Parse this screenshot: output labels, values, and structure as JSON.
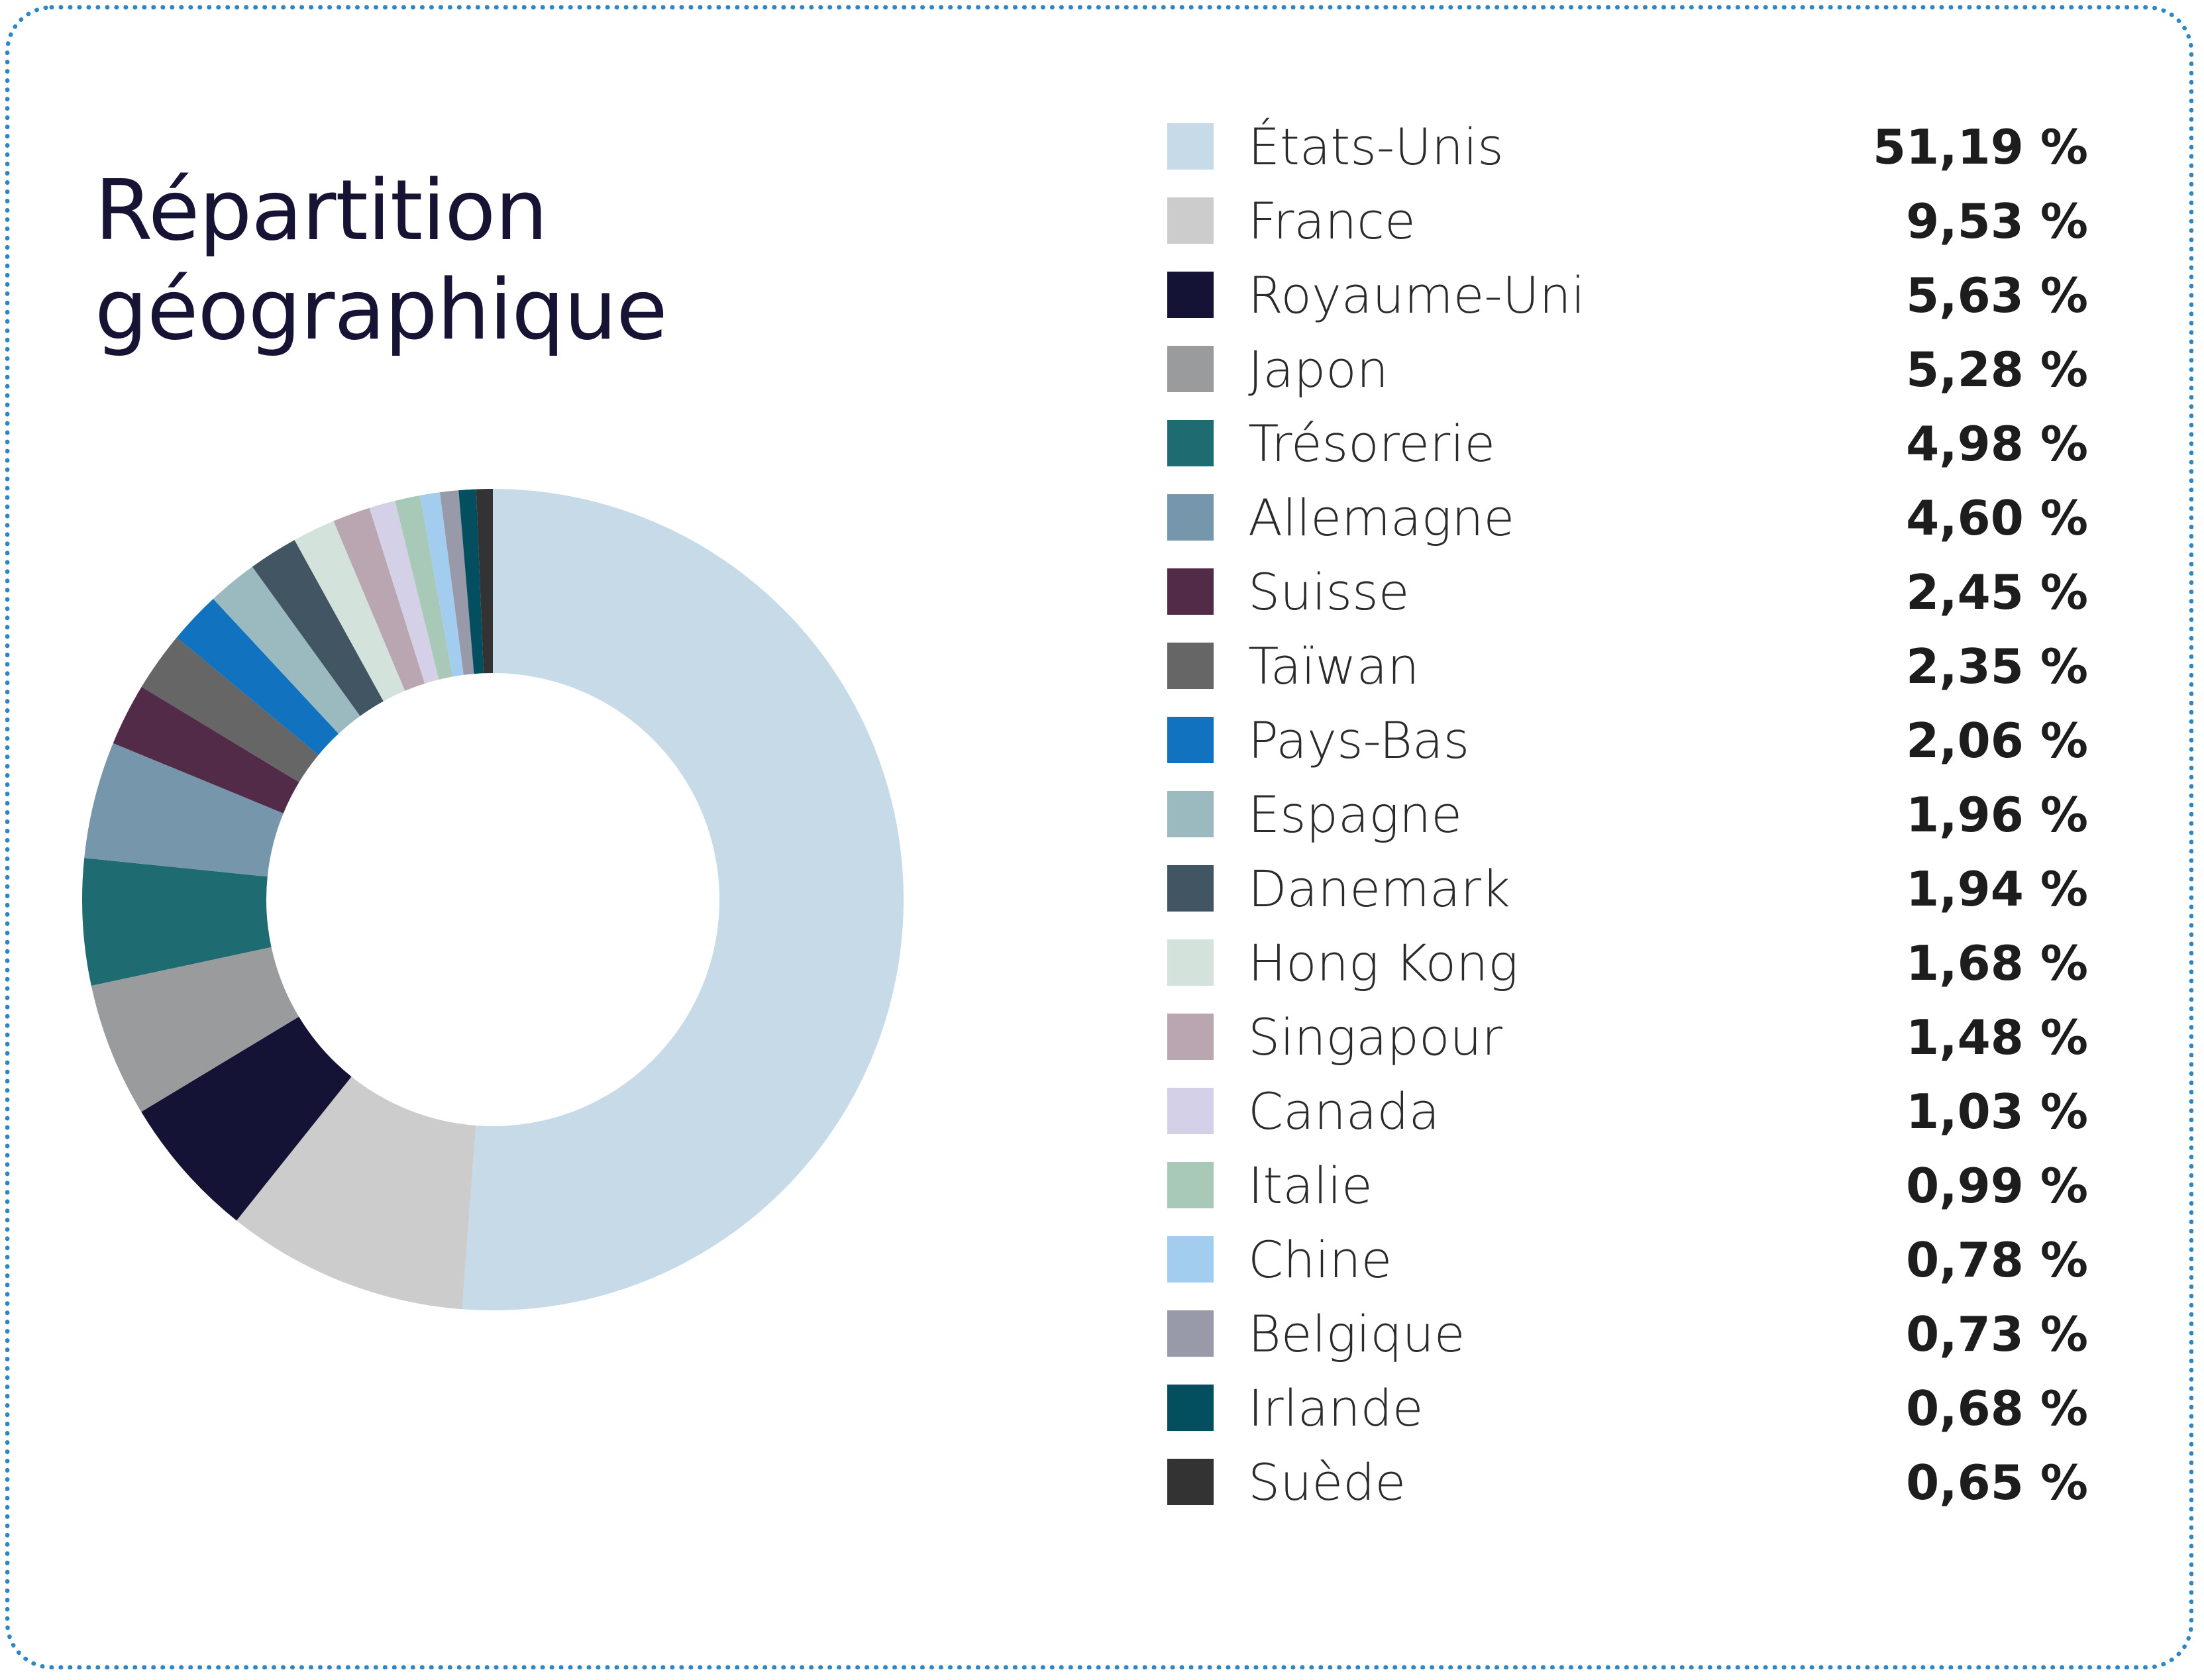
{
  "chart_data": {
    "type": "pie",
    "title": "Répartition géographique",
    "title_lines": [
      "Répartition",
      "géographique"
    ],
    "donut": true,
    "legend_position": "right",
    "slices": [
      {
        "label": "États-Unis",
        "value": 51.19,
        "value_label": "51,19 %",
        "color": "#c7dae7"
      },
      {
        "label": "France",
        "value": 9.53,
        "value_label": "9,53 %",
        "color": "#cccccc"
      },
      {
        "label": "Royaume-Uni",
        "value": 5.63,
        "value_label": "5,63 %",
        "color": "#141235"
      },
      {
        "label": "Japon",
        "value": 5.28,
        "value_label": "5,28 %",
        "color": "#9a9b9d"
      },
      {
        "label": "Trésorerie",
        "value": 4.98,
        "value_label": "4,98 %",
        "color": "#1e6b72"
      },
      {
        "label": "Allemagne",
        "value": 4.6,
        "value_label": "4,60 %",
        "color": "#7596ab"
      },
      {
        "label": "Suisse",
        "value": 2.45,
        "value_label": "2,45 %",
        "color": "#522b48"
      },
      {
        "label": "Taïwan",
        "value": 2.35,
        "value_label": "2,35 %",
        "color": "#666666"
      },
      {
        "label": "Pays-Bas",
        "value": 2.06,
        "value_label": "2,06 %",
        "color": "#1173bf"
      },
      {
        "label": "Espagne",
        "value": 1.96,
        "value_label": "1,96 %",
        "color": "#9bbac0"
      },
      {
        "label": "Danemark",
        "value": 1.94,
        "value_label": "1,94 %",
        "color": "#425563"
      },
      {
        "label": "Hong Kong",
        "value": 1.68,
        "value_label": "1,68 %",
        "color": "#d3e2da"
      },
      {
        "label": "Singapour",
        "value": 1.48,
        "value_label": "1,48 %",
        "color": "#b9a6b1"
      },
      {
        "label": "Canada",
        "value": 1.03,
        "value_label": "1,03 %",
        "color": "#d4d0e8"
      },
      {
        "label": "Italie",
        "value": 0.99,
        "value_label": "0,99 %",
        "color": "#a9c9b8"
      },
      {
        "label": "Chine",
        "value": 0.78,
        "value_label": "0,78 %",
        "color": "#a3cdee"
      },
      {
        "label": "Belgique",
        "value": 0.73,
        "value_label": "0,73 %",
        "color": "#9899a9"
      },
      {
        "label": "Irlande",
        "value": 0.68,
        "value_label": "0,68 %",
        "color": "#034f5f"
      },
      {
        "label": "Suède",
        "value": 0.65,
        "value_label": "0,65 %",
        "color": "#333333"
      }
    ]
  }
}
